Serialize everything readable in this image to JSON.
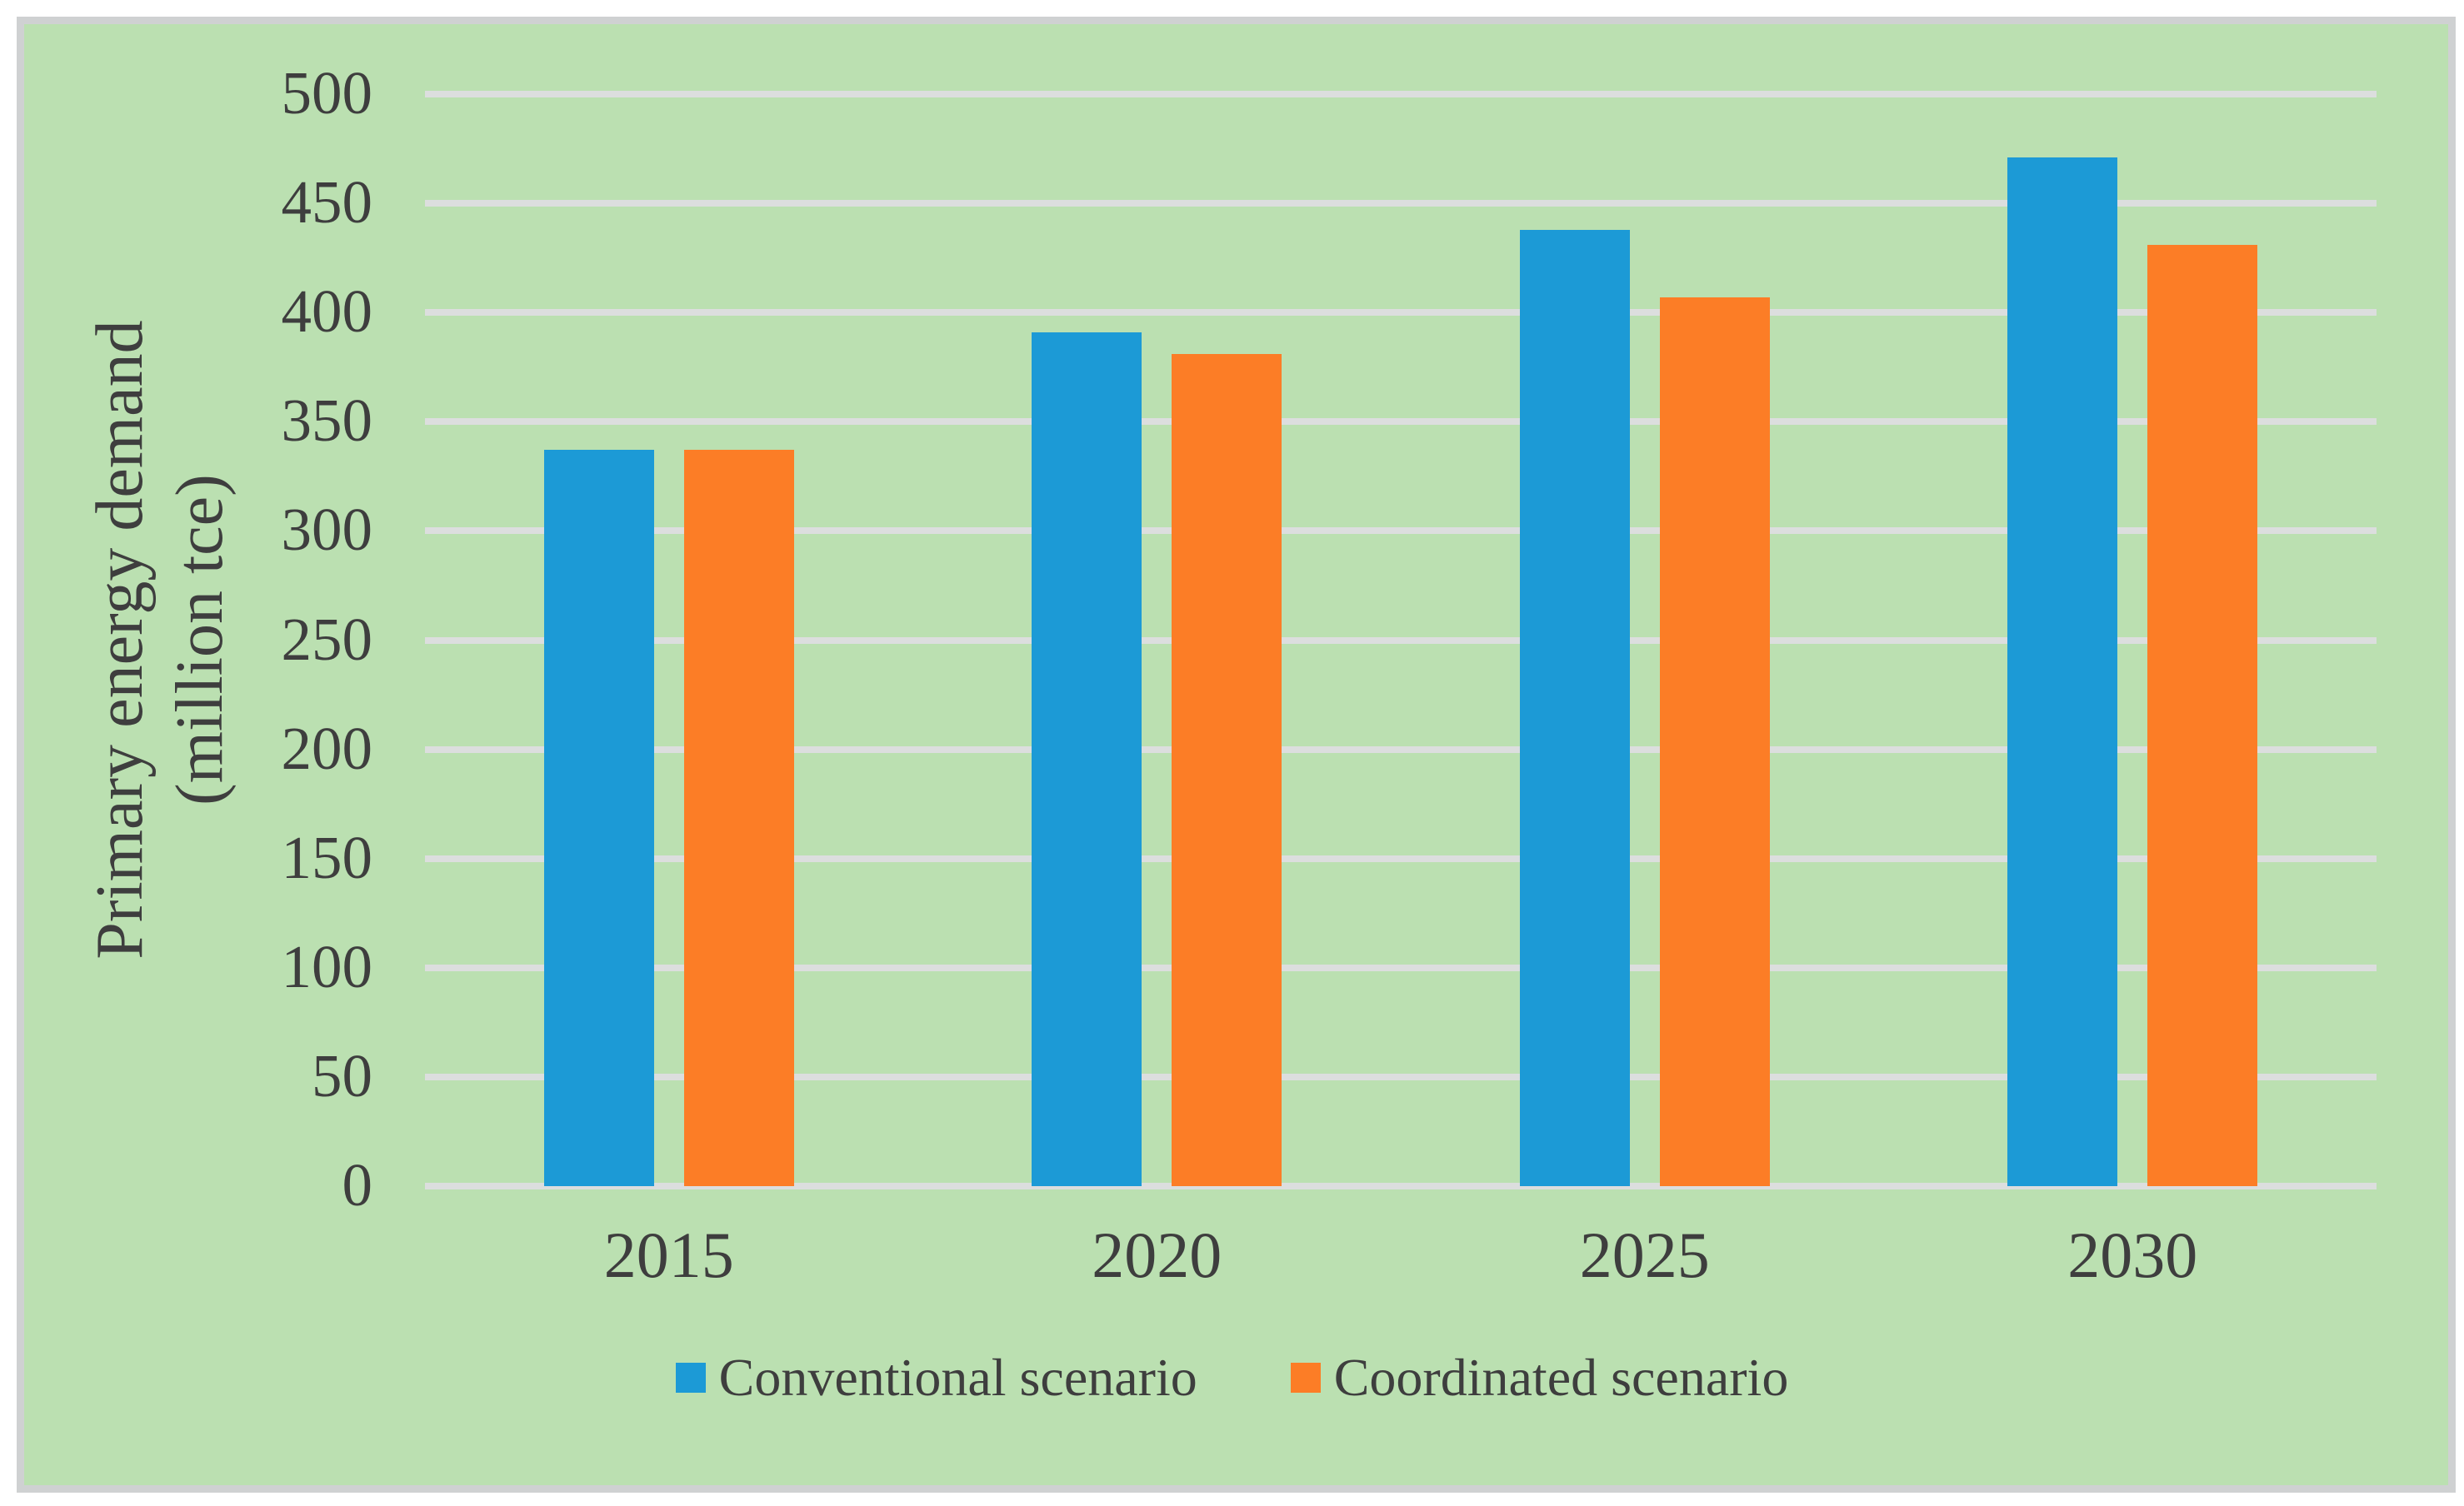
{
  "chart_data": {
    "type": "bar",
    "title": "",
    "categories": [
      "2015",
      "2020",
      "2025",
      "2030"
    ],
    "series": [
      {
        "name": "Conventional scenario",
        "color": "#1C9AD6",
        "values": [
          337,
          391,
          438,
          471
        ]
      },
      {
        "name": "Coordinated scenario",
        "color": "#FC7D26",
        "values": [
          337,
          381,
          407,
          431
        ]
      }
    ],
    "ylabel_line1": "Primary energy demand",
    "ylabel_line2": "(million tce)",
    "xlabel": "",
    "ylim": [
      0,
      500
    ],
    "ytick_step": 50,
    "yticks": [
      "0",
      "50",
      "100",
      "150",
      "200",
      "250",
      "300",
      "350",
      "400",
      "450",
      "500"
    ],
    "grid": "horizontal",
    "legend_position": "bottom",
    "colors": {
      "panel_background": "#BBE0B1",
      "page_background": "#FFFFFF",
      "grid_line": "#DCDEDE",
      "frame_border": "#CFD1D2",
      "text": "#3E3E3E"
    }
  }
}
